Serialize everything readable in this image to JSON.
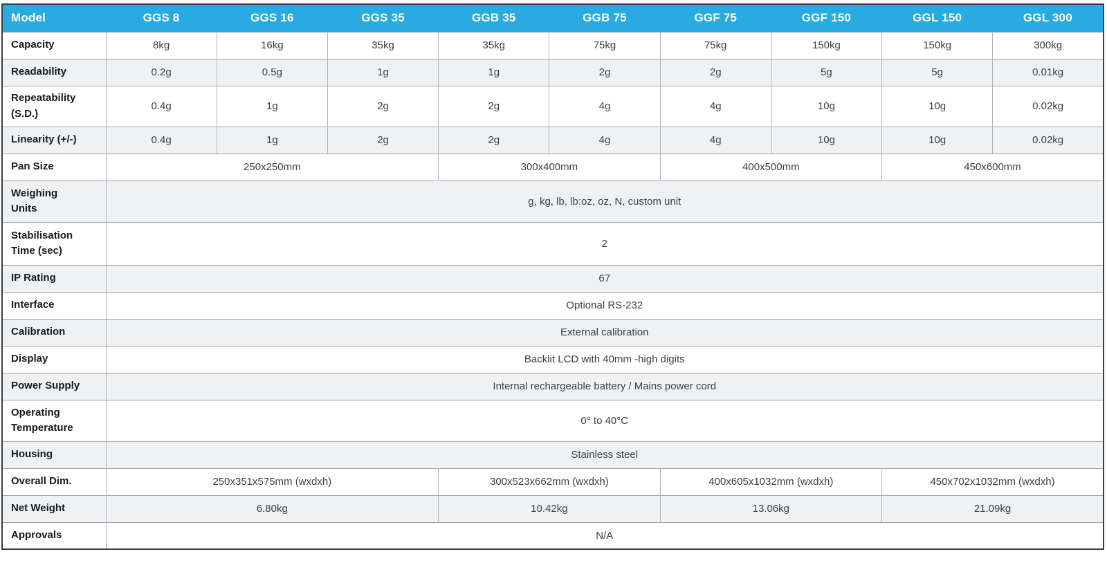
{
  "table": {
    "colors": {
      "header_bg": "#29abe2",
      "header_text": "#ffffff",
      "alt_row_bg": "#f0f1f3"
    },
    "header": {
      "label": "Model",
      "models": [
        "GGS 8",
        "GGS 16",
        "GGS 35",
        "GGB 35",
        "GGB 75",
        "GGF 75",
        "GGF 150",
        "GGL 150",
        "GGL 300"
      ]
    },
    "rows": [
      {
        "label": "Capacity",
        "type": "cells",
        "values": [
          "8kg",
          "16kg",
          "35kg",
          "35kg",
          "75kg",
          "75kg",
          "150kg",
          "150kg",
          "300kg"
        ]
      },
      {
        "label": "Readability",
        "type": "cells",
        "values": [
          "0.2g",
          "0.5g",
          "1g",
          "1g",
          "2g",
          "2g",
          "5g",
          "5g",
          "0.01kg"
        ]
      },
      {
        "label": "Repeatability\n(S.D.)",
        "type": "cells",
        "values": [
          "0.4g",
          "1g",
          "2g",
          "2g",
          "4g",
          "4g",
          "10g",
          "10g",
          "0.02kg"
        ]
      },
      {
        "label": "Linearity (+/-)",
        "type": "cells",
        "values": [
          "0.4g",
          "1g",
          "2g",
          "2g",
          "4g",
          "4g",
          "10g",
          "10g",
          "0.02kg"
        ]
      },
      {
        "label": "Pan Size",
        "type": "groups",
        "spans": [
          3,
          2,
          2,
          2
        ],
        "values": [
          "250x250mm",
          "300x400mm",
          "400x500mm",
          "450x600mm"
        ]
      },
      {
        "label": "Weighing\nUnits",
        "type": "full",
        "value": "g, kg, lb, lb:oz, oz, N, custom unit"
      },
      {
        "label": "Stabilisation\nTime (sec)",
        "type": "full",
        "value": "2"
      },
      {
        "label": "IP Rating",
        "type": "full",
        "value": "67"
      },
      {
        "label": "Interface",
        "type": "full",
        "value": "Optional RS-232"
      },
      {
        "label": "Calibration",
        "type": "full",
        "value": "External calibration"
      },
      {
        "label": "Display",
        "type": "full",
        "value": "Backlit LCD with 40mm -high digits"
      },
      {
        "label": "Power Supply",
        "type": "full",
        "value": "Internal rechargeable battery / Mains power cord"
      },
      {
        "label": "Operating\nTemperature",
        "type": "full",
        "value": "0° to 40°C"
      },
      {
        "label": "Housing",
        "type": "full",
        "value": "Stainless steel"
      },
      {
        "label": "Overall Dim.",
        "type": "groups",
        "spans": [
          3,
          2,
          2,
          2
        ],
        "values": [
          "250x351x575mm (wxdxh)",
          "300x523x662mm (wxdxh)",
          "400x605x1032mm (wxdxh)",
          "450x702x1032mm (wxdxh)"
        ]
      },
      {
        "label": "Net Weight",
        "type": "groups",
        "spans": [
          3,
          2,
          2,
          2
        ],
        "values": [
          "6.80kg",
          "10.42kg",
          "13.06kg",
          "21.09kg"
        ]
      },
      {
        "label": "Approvals",
        "type": "full",
        "value": "N/A"
      }
    ]
  }
}
